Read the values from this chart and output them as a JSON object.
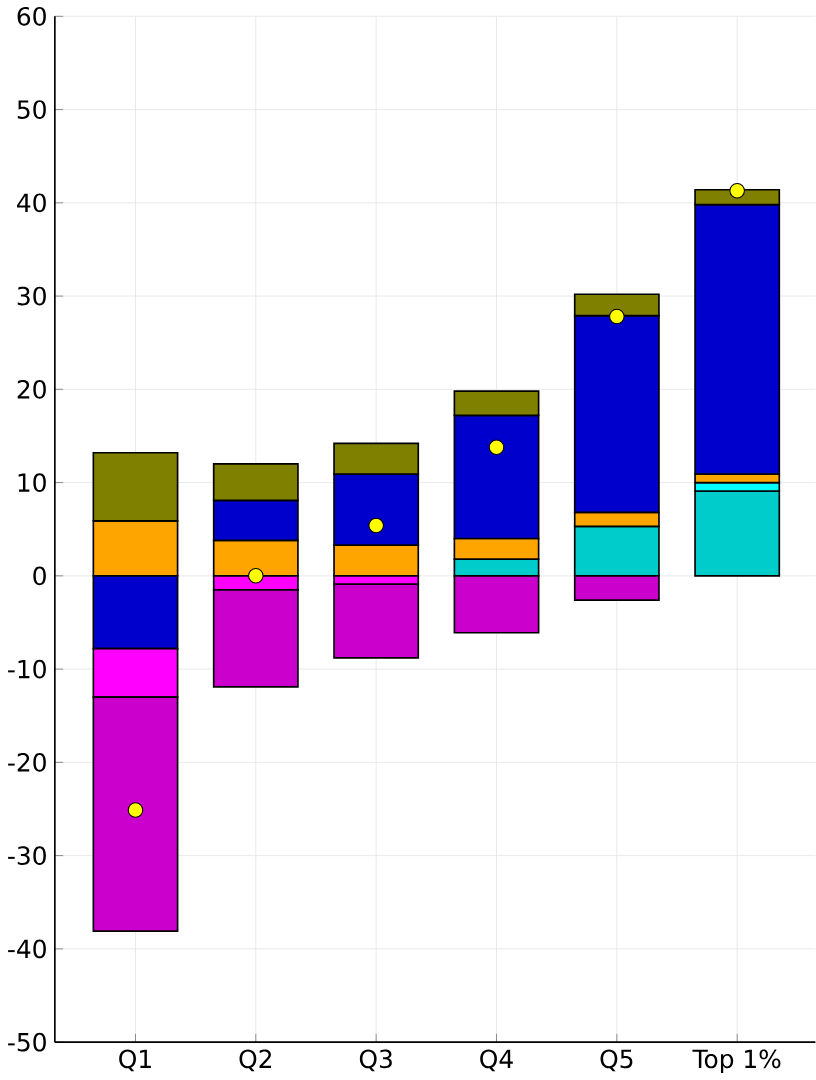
{
  "chart_data": {
    "type": "bar",
    "stacked": true,
    "categories": [
      "Q1",
      "Q2",
      "Q3",
      "Q4",
      "Q5",
      "Top 1%"
    ],
    "series": [
      {
        "color": "#00cccc",
        "values": [
          0,
          0,
          0,
          1.8,
          5.3,
          9.1
        ]
      },
      {
        "color": "#00ffff",
        "values": [
          0,
          0,
          0,
          0,
          0,
          0.9
        ]
      },
      {
        "color": "#ffa500",
        "values": [
          5.9,
          3.8,
          3.3,
          2.2,
          1.5,
          0.9
        ]
      },
      {
        "color": "#0000cc",
        "values": [
          -7.8,
          4.3,
          7.6,
          13.2,
          21.1,
          28.9
        ]
      },
      {
        "color": "#808000",
        "values": [
          7.3,
          3.9,
          3.3,
          2.6,
          2.3,
          1.6
        ]
      },
      {
        "color": "#ff00ff",
        "values": [
          -5.2,
          -1.5,
          -0.9,
          0,
          0,
          0
        ]
      },
      {
        "color": "#cc00cc",
        "values": [
          -25.1,
          -10.4,
          -7.9,
          -6.1,
          -2.6,
          0
        ]
      },
      {
        "type": "scatter",
        "color": "#ffff00",
        "marker": "circle",
        "x": [
          "Q1",
          "Q2",
          "Q3",
          "Q4",
          "Q5",
          "Top 1%"
        ],
        "values": [
          -25.1,
          0,
          5.4,
          13.8,
          27.8,
          41.3
        ]
      }
    ],
    "ylim": [
      -50,
      60
    ],
    "yticks": [
      -50,
      -40,
      -30,
      -20,
      -10,
      0,
      10,
      20,
      30,
      40,
      50,
      60
    ],
    "grid": true
  }
}
